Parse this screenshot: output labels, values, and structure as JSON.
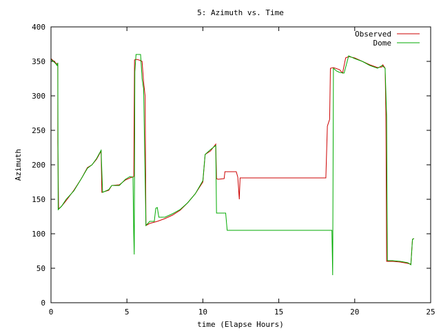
{
  "chart_data": {
    "type": "line",
    "title": "5: Azimuth vs. Time",
    "xlabel": "time (Elapse Hours)",
    "ylabel": "Azimuth",
    "xlim": [
      0,
      25
    ],
    "ylim": [
      0,
      400
    ],
    "xticks": [
      0,
      5,
      10,
      15,
      20,
      25
    ],
    "yticks": [
      0,
      50,
      100,
      150,
      200,
      250,
      300,
      350,
      400
    ],
    "grid": false,
    "legend_position": "top-right",
    "series": [
      {
        "name": "Observed",
        "color": "#cc0000",
        "points": [
          [
            0.0,
            354
          ],
          [
            0.3,
            348
          ],
          [
            0.45,
            345
          ],
          [
            0.45,
            232
          ],
          [
            0.5,
            136
          ],
          [
            0.7,
            140
          ],
          [
            1.0,
            148
          ],
          [
            1.5,
            163
          ],
          [
            2.0,
            180
          ],
          [
            2.4,
            196
          ],
          [
            2.7,
            200
          ],
          [
            3.0,
            208
          ],
          [
            3.3,
            220
          ],
          [
            3.35,
            160
          ],
          [
            3.8,
            163
          ],
          [
            4.0,
            170
          ],
          [
            4.5,
            171
          ],
          [
            4.9,
            178
          ],
          [
            5.2,
            181
          ],
          [
            5.45,
            183
          ],
          [
            5.5,
            352
          ],
          [
            5.6,
            353
          ],
          [
            5.8,
            352
          ],
          [
            6.0,
            350
          ],
          [
            6.1,
            320
          ],
          [
            6.2,
            300
          ],
          [
            6.25,
            112
          ],
          [
            6.5,
            115
          ],
          [
            7.0,
            118
          ],
          [
            7.5,
            122
          ],
          [
            8.0,
            127
          ],
          [
            8.5,
            134
          ],
          [
            9.0,
            145
          ],
          [
            9.5,
            158
          ],
          [
            10.0,
            175
          ],
          [
            10.15,
            215
          ],
          [
            10.5,
            220
          ],
          [
            10.85,
            230
          ],
          [
            10.9,
            180
          ],
          [
            11.0,
            179
          ],
          [
            11.4,
            180
          ],
          [
            11.45,
            190
          ],
          [
            12.2,
            190
          ],
          [
            12.3,
            182
          ],
          [
            12.4,
            150
          ],
          [
            12.45,
            181
          ],
          [
            18.0,
            181
          ],
          [
            18.1,
            181
          ],
          [
            18.2,
            256
          ],
          [
            18.35,
            266
          ],
          [
            18.4,
            340
          ],
          [
            18.6,
            341
          ],
          [
            19.0,
            338
          ],
          [
            19.2,
            333
          ],
          [
            19.4,
            355
          ],
          [
            19.6,
            357
          ],
          [
            20.0,
            355
          ],
          [
            20.5,
            350
          ],
          [
            21.0,
            345
          ],
          [
            21.5,
            341
          ],
          [
            21.8,
            342
          ],
          [
            21.85,
            345
          ],
          [
            22.0,
            340
          ],
          [
            22.05,
            275
          ],
          [
            22.1,
            60
          ],
          [
            22.5,
            60
          ],
          [
            23.0,
            59
          ],
          [
            23.5,
            57
          ],
          [
            23.7,
            56
          ],
          [
            23.8,
            92
          ],
          [
            23.9,
            93
          ]
        ]
      },
      {
        "name": "Dome",
        "color": "#00aa00",
        "points": [
          [
            0.0,
            353
          ],
          [
            0.3,
            347
          ],
          [
            0.4,
            344
          ],
          [
            0.45,
            348
          ],
          [
            0.47,
            135
          ],
          [
            0.7,
            140
          ],
          [
            1.0,
            150
          ],
          [
            1.5,
            162
          ],
          [
            2.0,
            180
          ],
          [
            2.4,
            195
          ],
          [
            2.7,
            200
          ],
          [
            3.0,
            209
          ],
          [
            3.3,
            221
          ],
          [
            3.4,
            160
          ],
          [
            3.8,
            164
          ],
          [
            4.0,
            170
          ],
          [
            4.5,
            170
          ],
          [
            4.9,
            179
          ],
          [
            5.2,
            183
          ],
          [
            5.4,
            182
          ],
          [
            5.45,
            100
          ],
          [
            5.48,
            70
          ],
          [
            5.5,
            183
          ],
          [
            5.52,
            335
          ],
          [
            5.6,
            360
          ],
          [
            5.9,
            360
          ],
          [
            6.0,
            325
          ],
          [
            6.1,
            310
          ],
          [
            6.2,
            180
          ],
          [
            6.25,
            112
          ],
          [
            6.5,
            118
          ],
          [
            6.8,
            118
          ],
          [
            6.9,
            137
          ],
          [
            7.0,
            138
          ],
          [
            7.1,
            124
          ],
          [
            7.5,
            124
          ],
          [
            8.0,
            129
          ],
          [
            8.5,
            135
          ],
          [
            9.0,
            145
          ],
          [
            9.5,
            158
          ],
          [
            10.0,
            177
          ],
          [
            10.15,
            215
          ],
          [
            10.5,
            222
          ],
          [
            10.85,
            228
          ],
          [
            10.9,
            130
          ],
          [
            11.5,
            130
          ],
          [
            11.6,
            105
          ],
          [
            18.5,
            105
          ],
          [
            18.55,
            40
          ],
          [
            18.6,
            340
          ],
          [
            18.8,
            336
          ],
          [
            19.0,
            334
          ],
          [
            19.3,
            333
          ],
          [
            19.6,
            358
          ],
          [
            20.0,
            354
          ],
          [
            20.5,
            350
          ],
          [
            21.0,
            344
          ],
          [
            21.5,
            340
          ],
          [
            21.8,
            344
          ],
          [
            22.0,
            340
          ],
          [
            22.1,
            270
          ],
          [
            22.15,
            61
          ],
          [
            22.5,
            61
          ],
          [
            23.0,
            60
          ],
          [
            23.5,
            58
          ],
          [
            23.7,
            55
          ],
          [
            23.8,
            92
          ],
          [
            23.9,
            93
          ]
        ]
      }
    ]
  }
}
